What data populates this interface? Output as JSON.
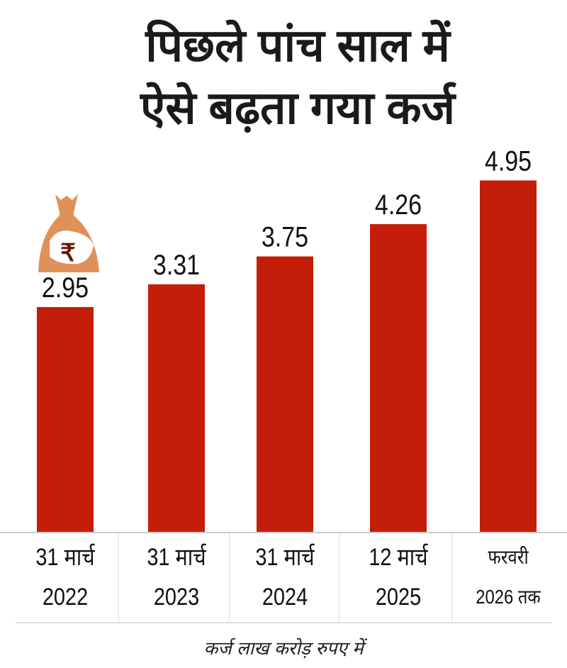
{
  "title_lines": [
    "पिछले पांच साल में",
    "ऐसे बढ़ता गया कर्ज"
  ],
  "footer": "कर्ज लाख करोड़ रुपए में",
  "icon": "money-bag-rupee-icon",
  "colors": {
    "bar": "#c41e0a",
    "bag": "#e0915a"
  },
  "chart_data": {
    "type": "bar",
    "title": "पिछले पांच साल में ऐसे बढ़ता गया कर्ज",
    "ylabel": "कर्ज लाख करोड़ रुपए में",
    "categories": [
      {
        "line1": "31 मार्च",
        "line2": "2022"
      },
      {
        "line1": "31 मार्च",
        "line2": "2023"
      },
      {
        "line1": "31 मार्च",
        "line2": "2024"
      },
      {
        "line1": "12 मार्च",
        "line2": "2025"
      },
      {
        "line1": "फरवरी",
        "line2": "2026 तक"
      }
    ],
    "values": [
      2.95,
      3.31,
      3.75,
      4.26,
      4.95
    ],
    "value_labels": [
      "2.95",
      "3.31",
      "3.75",
      "4.26",
      "4.95"
    ],
    "ylim": [
      -0.6,
      5.0
    ],
    "grid": false
  }
}
